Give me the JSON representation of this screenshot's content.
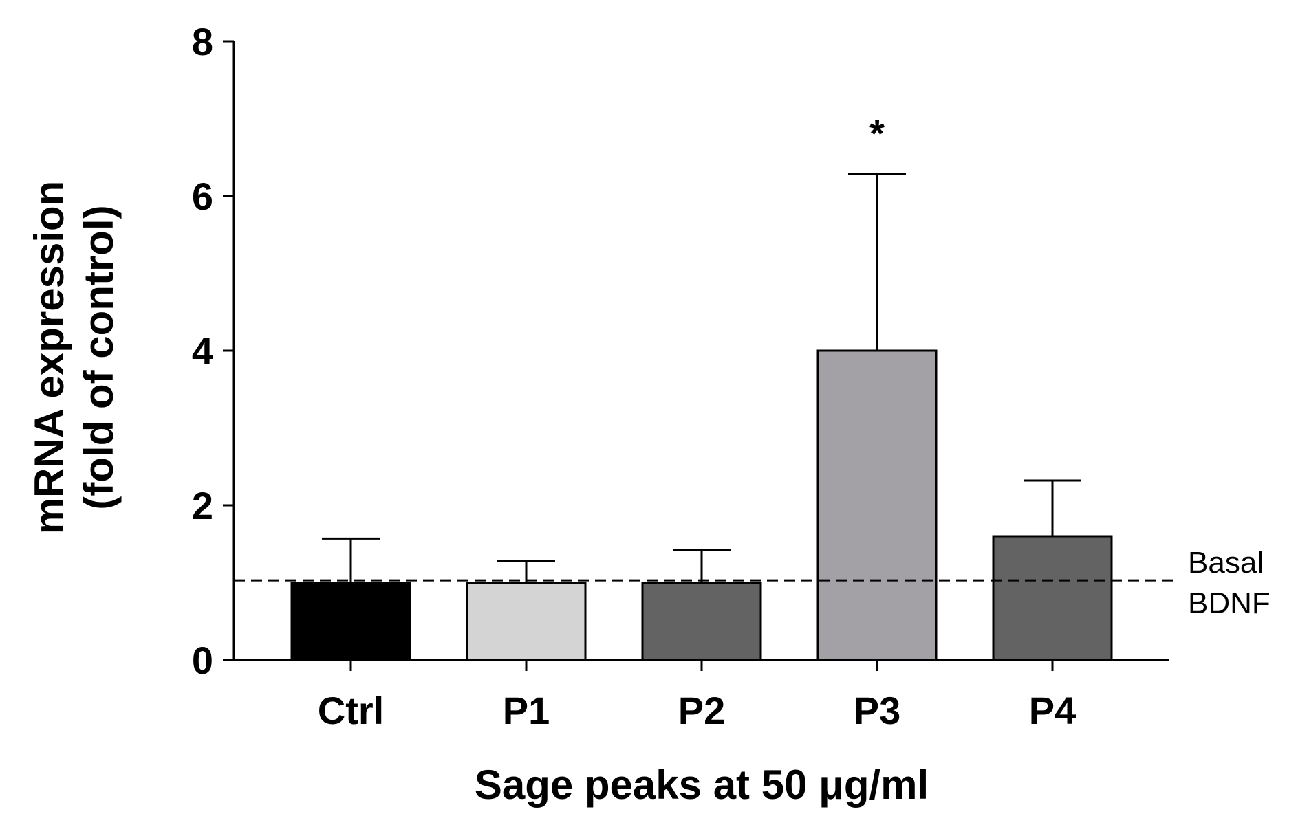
{
  "chart_data": {
    "type": "bar",
    "title": "",
    "xlabel": "Sage peaks at 50 μg/ml",
    "ylabel_line1": "mRNA expression",
    "ylabel_line2": "(fold of control)",
    "ylim": [
      0,
      8
    ],
    "yticks": [
      0,
      2,
      4,
      6,
      8
    ],
    "grid": false,
    "categories": [
      "Ctrl",
      "P1",
      "P2",
      "P3",
      "P4"
    ],
    "values": [
      1.0,
      1.0,
      1.0,
      4.0,
      1.6
    ],
    "errors": [
      0.57,
      0.28,
      0.42,
      2.28,
      0.72
    ],
    "colors": [
      "#000000",
      "#d4d4d4",
      "#636363",
      "#a3a1a6",
      "#636363"
    ],
    "annotations": [
      {
        "category": "P3",
        "text": "*"
      }
    ],
    "reference_line": {
      "value": 1.03,
      "style": "dashed",
      "label_line1": "Basal",
      "label_line2": "BDNF"
    }
  }
}
